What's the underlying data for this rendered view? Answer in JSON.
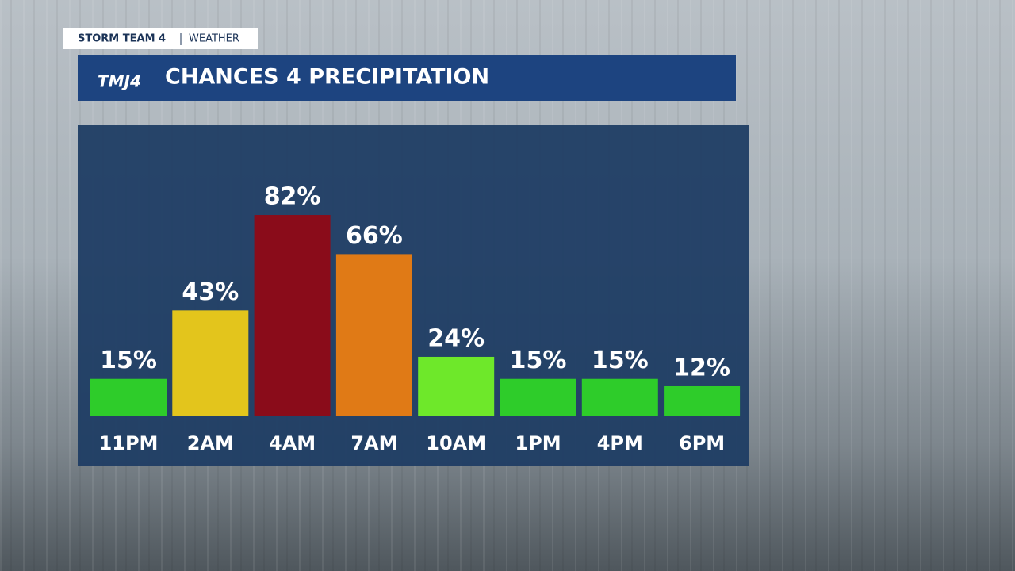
{
  "brand": {
    "tag": "STORM TEAM 4",
    "section": "WEATHER",
    "logo": "TMJ4"
  },
  "chart_data": {
    "type": "bar",
    "title": "CHANCES 4 PRECIPITATION",
    "categories": [
      "11PM",
      "2AM",
      "4AM",
      "7AM",
      "10AM",
      "1PM",
      "4PM",
      "6PM"
    ],
    "values": [
      15,
      43,
      82,
      66,
      24,
      15,
      15,
      12
    ],
    "value_labels": [
      "15%",
      "43%",
      "82%",
      "66%",
      "24%",
      "15%",
      "15%",
      "12%"
    ],
    "colors": [
      "#2ecc2a",
      "#e3c51c",
      "#8a0c1a",
      "#e07a16",
      "#6ee82a",
      "#2ecc2a",
      "#2ecc2a",
      "#2ecc2a"
    ]
  }
}
